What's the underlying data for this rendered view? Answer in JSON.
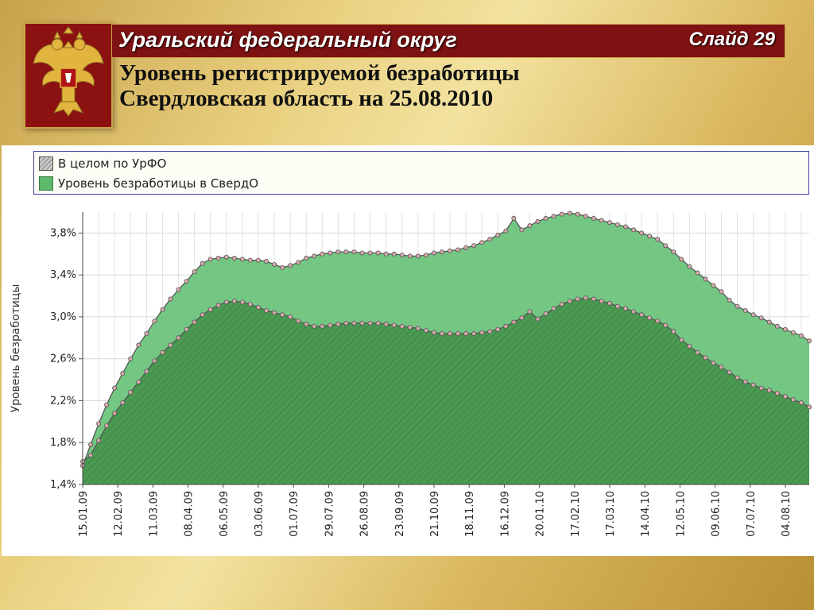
{
  "header": {
    "region": "Уральский федеральный округ",
    "slide": "Слайд 29",
    "title_line1": "Уровень регистрируемой безработицы",
    "title_line2": "Свердловская область на 25.08.2010"
  },
  "colors": {
    "header_bg": "#7e1111",
    "total_fill": "#4a9a52",
    "sverd_fill": "#6cc47c",
    "line": "#555555",
    "marker": "#d8aaaa"
  },
  "icons": {
    "emblem": "coat-of-arms-icon"
  },
  "chart_data": {
    "type": "area",
    "ylabel": "Уровень безработицы",
    "xlabel": "",
    "ylim": [
      1.4,
      4.0
    ],
    "yticks": [
      "1,4%",
      "1,8%",
      "2,2%",
      "2,6%",
      "3,0%",
      "3,4%",
      "3,8%"
    ],
    "ytick_values": [
      1.4,
      1.8,
      2.2,
      2.6,
      3.0,
      3.4,
      3.8
    ],
    "grid": true,
    "legend_position": "top",
    "x_labels": [
      "15.01.09",
      "12.02.09",
      "11.03.09",
      "08.04.09",
      "06.05.09",
      "03.06.09",
      "01.07.09",
      "29.07.09",
      "26.08.09",
      "23.09.09",
      "21.10.09",
      "18.11.09",
      "16.12.09",
      "20.01.10",
      "17.02.10",
      "17.03.10",
      "14.04.10",
      "12.05.10",
      "09.06.10",
      "07.07.10",
      "04.08.10"
    ],
    "series": [
      {
        "name": "В целом по УрФО",
        "values": [
          1.62,
          1.68,
          1.82,
          1.96,
          2.08,
          2.18,
          2.28,
          2.38,
          2.48,
          2.58,
          2.66,
          2.73,
          2.8,
          2.88,
          2.95,
          3.02,
          3.07,
          3.11,
          3.14,
          3.15,
          3.14,
          3.12,
          3.09,
          3.06,
          3.04,
          3.02,
          3.0,
          2.96,
          2.93,
          2.91,
          2.91,
          2.92,
          2.93,
          2.94,
          2.94,
          2.94,
          2.94,
          2.94,
          2.93,
          2.92,
          2.91,
          2.9,
          2.89,
          2.87,
          2.85,
          2.84,
          2.84,
          2.84,
          2.84,
          2.84,
          2.85,
          2.86,
          2.88,
          2.91,
          2.95,
          2.99,
          3.05,
          2.98,
          3.03,
          3.08,
          3.12,
          3.15,
          3.17,
          3.18,
          3.17,
          3.15,
          3.13,
          3.1,
          3.08,
          3.05,
          3.02,
          2.99,
          2.96,
          2.92,
          2.86,
          2.78,
          2.72,
          2.66,
          2.61,
          2.56,
          2.52,
          2.47,
          2.42,
          2.38,
          2.35,
          2.32,
          2.3,
          2.27,
          2.24,
          2.21,
          2.18,
          2.14
        ]
      },
      {
        "name": "Уровень безработицы в СвердО",
        "values": [
          1.58,
          1.78,
          1.98,
          2.16,
          2.32,
          2.46,
          2.6,
          2.73,
          2.84,
          2.96,
          3.07,
          3.17,
          3.26,
          3.34,
          3.43,
          3.51,
          3.55,
          3.56,
          3.57,
          3.56,
          3.55,
          3.54,
          3.54,
          3.53,
          3.5,
          3.47,
          3.49,
          3.52,
          3.56,
          3.58,
          3.6,
          3.61,
          3.62,
          3.62,
          3.62,
          3.61,
          3.61,
          3.61,
          3.6,
          3.6,
          3.59,
          3.58,
          3.58,
          3.59,
          3.61,
          3.62,
          3.63,
          3.64,
          3.66,
          3.68,
          3.71,
          3.74,
          3.78,
          3.82,
          3.94,
          3.83,
          3.87,
          3.91,
          3.94,
          3.96,
          3.98,
          3.99,
          3.98,
          3.96,
          3.94,
          3.92,
          3.9,
          3.88,
          3.86,
          3.83,
          3.8,
          3.77,
          3.74,
          3.68,
          3.62,
          3.55,
          3.48,
          3.42,
          3.36,
          3.3,
          3.24,
          3.16,
          3.1,
          3.06,
          3.02,
          2.99,
          2.95,
          2.91,
          2.88,
          2.85,
          2.82,
          2.77
        ]
      }
    ]
  }
}
